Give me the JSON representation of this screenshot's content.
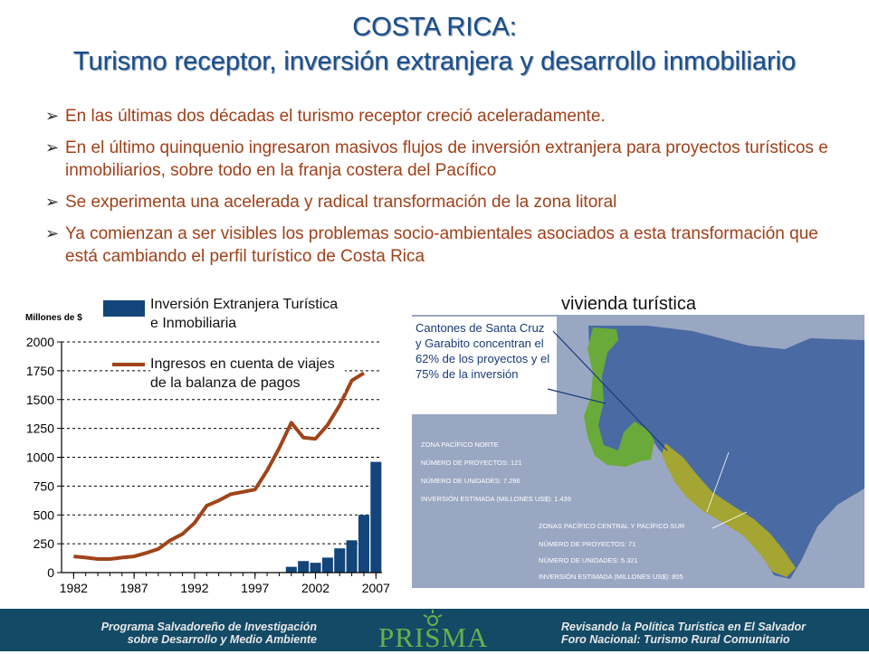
{
  "title": {
    "line1": "COSTA RICA:",
    "line2": "Turismo receptor, inversión extranjera y desarrollo inmobiliario"
  },
  "bullets": [
    "En las últimas dos décadas el turismo receptor creció aceleradamente.",
    "En el último quinquenio ingresaron masivos flujos de inversión extranjera para proyectos turísticos e inmobiliarios, sobre todo en la franja costera del Pacífico",
    "Se experimenta una acelerada y radical transformación de la zona litoral",
    "Ya comienzan a ser visibles los problemas socio-ambientales asociados a esta transformación que está cambiando el perfil turístico de Costa Rica"
  ],
  "chart_data": {
    "type": "bar",
    "ylabel": "Millones de $",
    "ylim": [
      0,
      2000
    ],
    "y_ticks": [
      "0",
      "250",
      "500",
      "750",
      "1000",
      "1250",
      "1500",
      "1750",
      "2000"
    ],
    "x_ticks": [
      "1982",
      "1987",
      "1992",
      "1997",
      "2002",
      "2007"
    ],
    "grid": true,
    "legend_placement": "top-right",
    "series": [
      {
        "name": "Inversión Extranjera Turística e Inmobiliaria",
        "kind": "bar",
        "color": "#13457a",
        "x": [
          2000,
          2001,
          2002,
          2003,
          2004,
          2005,
          2006,
          2007
        ],
        "values": [
          50,
          100,
          85,
          130,
          210,
          280,
          500,
          960
        ]
      },
      {
        "name": "Ingresos en cuenta de viajes de la balanza de pagos",
        "kind": "line",
        "color": "#a0441a",
        "x": [
          1982,
          1983,
          1984,
          1985,
          1986,
          1987,
          1988,
          1989,
          1990,
          1991,
          1992,
          1993,
          1994,
          1995,
          1996,
          1997,
          1998,
          1999,
          2000,
          2001,
          2002,
          2003,
          2004,
          2005,
          2006
        ],
        "values": [
          140,
          130,
          118,
          118,
          130,
          140,
          170,
          205,
          280,
          335,
          430,
          580,
          625,
          680,
          700,
          720,
          885,
          1080,
          1300,
          1170,
          1160,
          1280,
          1450,
          1665,
          1730
        ]
      }
    ]
  },
  "map": {
    "title": "vivienda turística",
    "callout": "Cantones de Santa Cruz y Garabito concentran el 62% de los proyectos y el 75% de la inversión",
    "north": {
      "zone": "ZONA PACÍFICO NORTE",
      "projects": "NÚMERO DE PROYECTOS: 121",
      "units": "NÚMERO DE UNIDADES: 7.296",
      "investment": "INVERSIÓN ESTIMADA (MILLONES US$): 1.439"
    },
    "south": {
      "zone": "ZONAS PACÍFICO CENTRAL Y PACÍFICO SUR",
      "projects": "NÚMERO DE PROYECTOS: 71",
      "units": "NÚMERO DE UNIDADES: 5.321",
      "investment": "INVERSIÓN ESTIMADA (MILLONES US$): 805"
    },
    "colors": {
      "sea": "#9aa7c2",
      "land": "#4a6aa3",
      "north_zone": "#6aaa3a",
      "south_zone": "#a4a532"
    }
  },
  "footer": {
    "left_line1": "Programa Salvadoreño de Investigación",
    "left_line2": "sobre Desarrollo y Medio Ambiente",
    "logo": "PRISMA",
    "right_line1": "Revisando la Política Turística en El Salvador",
    "right_line2": "Foro Nacional: Turismo Rural Comunitario",
    "background": "#134a66"
  }
}
